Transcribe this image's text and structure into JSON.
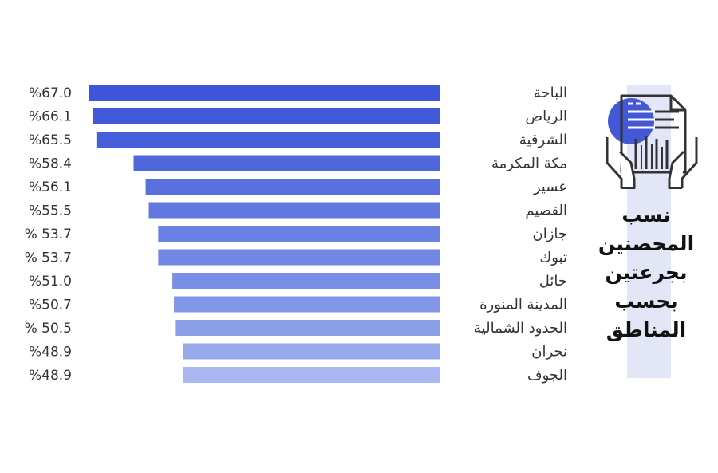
{
  "chart_data": {
    "type": "bar",
    "orientation": "horizontal",
    "title_lines": [
      "نسب",
      "المحصنين",
      "بجرعتين",
      "بحسب",
      "المناطق"
    ],
    "categories": [
      "الباحة",
      "الرياض",
      "الشرقية",
      "مكة المكرمة",
      "عسير",
      "القصيم",
      "جازان",
      "تبوك",
      "حائل",
      "المدينة المنورة",
      "الحدود الشمالية",
      "نجران",
      "الجوف"
    ],
    "values": [
      67.0,
      66.1,
      65.5,
      58.4,
      56.1,
      55.5,
      53.7,
      53.7,
      51.0,
      50.7,
      50.5,
      48.9,
      48.9
    ],
    "value_labels": [
      "%67.0",
      "%66.1",
      "%65.5",
      "%58.4",
      "%56.1",
      "%55.5",
      "% 53.7",
      "% 53.7",
      "%51.0",
      "%50.7",
      "% 50.5",
      "%48.9",
      "%48.9"
    ],
    "unit": "%",
    "xlim": [
      0,
      67
    ],
    "grid": false,
    "legend": "none",
    "bar_colors": [
      "#3d55d8",
      "#4259d9",
      "#475edb",
      "#5067dc",
      "#5970de",
      "#6278e0",
      "#6a80e2",
      "#7287e3",
      "#7a8ee5",
      "#8396e7",
      "#8c9fe9",
      "#98a9eb",
      "#a9b6ef"
    ]
  },
  "decor": {
    "panel_color": "#e3e6f7",
    "icon": "document-with-barcode-held-by-hands-icon",
    "icon_accent": "#4457d6",
    "icon_stroke": "#333333"
  }
}
